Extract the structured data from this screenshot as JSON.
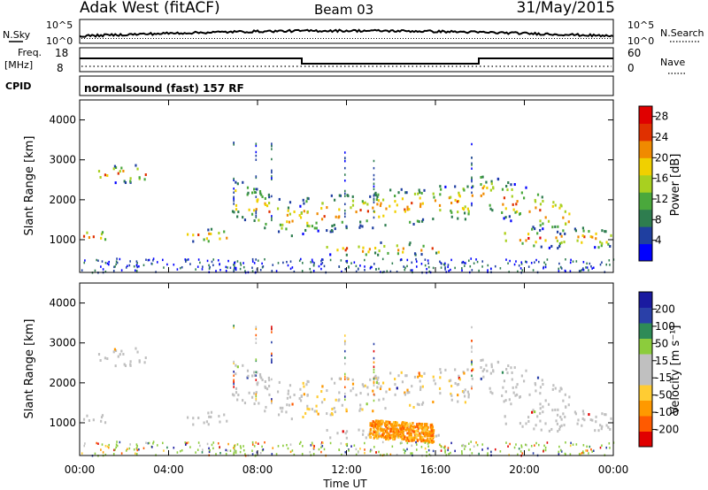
{
  "header": {
    "radar": "Adak West (fitACF)",
    "beam": "Beam 03",
    "date": "31/May/2015"
  },
  "sky_panel": {
    "left_label": "N.Sky",
    "right_label": "N.Search",
    "left_ticks": [
      "10^5",
      "10^0"
    ],
    "right_ticks": [
      "10^5",
      "10^0"
    ]
  },
  "freq_panel": {
    "left_label_line1": "Freq.",
    "left_label_line2": "[MHz]",
    "right_label": "Nave",
    "left_ticks": [
      "18",
      "8"
    ],
    "right_ticks": [
      "60",
      "0"
    ]
  },
  "cpid_panel": {
    "label": "CPID",
    "program": "normalsound (fast) 157 RF"
  },
  "colors": {
    "power_scale": [
      "#0000ff",
      "#1f3fa0",
      "#2e7d4f",
      "#4aa83c",
      "#a8d020",
      "#f0d000",
      "#f08a00",
      "#e03000",
      "#e00000"
    ],
    "velocity_scale": [
      "#e00000",
      "#ff5a00",
      "#ff9900",
      "#ffcc33",
      "#c0c0c0",
      "#c0c0c0",
      "#8ccc3c",
      "#2e8b57",
      "#2a40a8",
      "#1a1aa0"
    ],
    "ground_scatter": "#c0c0c0"
  },
  "chart_data": [
    {
      "type": "heatmap",
      "panel": "power",
      "ylabel": "Slant Range [km]",
      "yticks": [
        "1000",
        "2000",
        "3000",
        "4000"
      ],
      "ylim": [
        180,
        4500
      ],
      "colorbar_label": "Power [dB]",
      "colorbar_ticks": [
        "4",
        "8",
        "12",
        "16",
        "20",
        "24",
        "28"
      ],
      "colorbar_range": [
        0,
        30
      ],
      "echo_bands": [
        {
          "t_start": 0.0,
          "t_end": 1.4,
          "range_low": 950,
          "range_high": 1300
        },
        {
          "t_start": 0.5,
          "t_end": 3.0,
          "range_low": 2400,
          "range_high": 2950
        },
        {
          "t_start": 4.8,
          "t_end": 6.8,
          "range_low": 900,
          "range_high": 1350
        },
        {
          "t_start": 6.8,
          "t_end": 10.0,
          "range_low": 1500,
          "range_high": 2700
        },
        {
          "t_start": 10.0,
          "t_end": 17.9,
          "range_low": 1050,
          "range_high": 2200
        },
        {
          "t_start": 11.0,
          "t_end": 16.2,
          "range_low": 600,
          "range_high": 1000
        },
        {
          "t_start": 18.0,
          "t_end": 22.0,
          "range_low": 1600,
          "range_high": 2800
        },
        {
          "t_start": 19.0,
          "t_end": 24.0,
          "range_low": 750,
          "range_high": 1400
        }
      ]
    },
    {
      "type": "heatmap",
      "panel": "velocity",
      "ylabel": "Slant Range [km]",
      "xlabel": "Time UT",
      "yticks": [
        "1000",
        "2000",
        "3000",
        "4000"
      ],
      "xticks": [
        "00:00",
        "04:00",
        "08:00",
        "12:00",
        "16:00",
        "20:00",
        "00:00"
      ],
      "ylim": [
        180,
        4500
      ],
      "xlim": [
        0,
        24
      ],
      "colorbar_label": "Velocity [m s⁻¹]",
      "colorbar_ticks": [
        "200",
        "100",
        "50",
        "15",
        "-15",
        "-50",
        "-100",
        "-200"
      ],
      "colorbar_range": [
        -250,
        250
      ],
      "notable_region": {
        "t_start": 13.0,
        "t_end": 15.9,
        "range_low": 650,
        "range_high": 1100,
        "velocity": -70
      }
    }
  ]
}
